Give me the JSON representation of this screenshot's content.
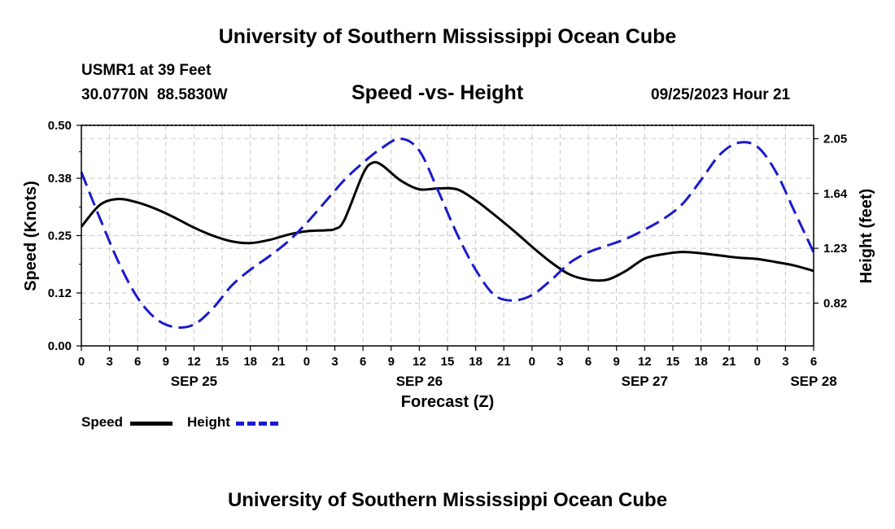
{
  "header": {
    "title": "University of Southern Mississippi Ocean Cube",
    "station": "USMR1 at 39 Feet",
    "location": "30.0770N  88.5830W",
    "chart_title": "Speed -vs- Height",
    "datetime": "09/25/2023 Hour 21"
  },
  "footer": {
    "title": "University of Southern Mississippi Ocean Cube"
  },
  "legend": {
    "speed_label": "Speed",
    "height_label": "Height"
  },
  "chart_data": {
    "type": "line",
    "title": "Speed -vs- Height",
    "xlabel": "Forecast (Z)",
    "ylabel_left": "Speed (Knots)",
    "ylabel_right": "Height (feet)",
    "x_unit": "hours from SEP 25 00Z",
    "xlim": [
      0,
      78
    ],
    "ylim_left": [
      0,
      0.5
    ],
    "ylim_right": [
      0.5,
      2.15
    ],
    "x_tick_labels": [
      "0",
      "3",
      "6",
      "9",
      "12",
      "15",
      "18",
      "21",
      "0",
      "3",
      "6",
      "9",
      "12",
      "15",
      "18",
      "21",
      "0",
      "3",
      "6",
      "9",
      "12",
      "15",
      "18",
      "21",
      "0",
      "3",
      "6"
    ],
    "date_labels": [
      {
        "x": 12,
        "label": "SEP 25"
      },
      {
        "x": 36,
        "label": "SEP 26"
      },
      {
        "x": 60,
        "label": "SEP 27"
      },
      {
        "x": 78,
        "label": "SEP 28"
      }
    ],
    "y_left_ticks": [
      0.0,
      0.12,
      0.25,
      0.38,
      0.5
    ],
    "y_left_tick_labels": [
      "0.00",
      "0.12",
      "0.25",
      "0.38",
      "0.50"
    ],
    "y_right_ticks": [
      0.82,
      1.23,
      1.64,
      2.05
    ],
    "y_right_tick_labels": [
      "0.82",
      "1.23",
      "1.64",
      "2.05"
    ],
    "grid": true,
    "series": [
      {
        "name": "Speed",
        "axis": "left",
        "color": "#000000",
        "style": "solid",
        "x": [
          0,
          2,
          4,
          6,
          8,
          10,
          12,
          14,
          16,
          18,
          20,
          22,
          24,
          26,
          27,
          28,
          30,
          31,
          32,
          34,
          36,
          38,
          40,
          42,
          44,
          46,
          48,
          50,
          52,
          54,
          56,
          58,
          60,
          62,
          64,
          66,
          68,
          70,
          72,
          74,
          76,
          78
        ],
        "values": [
          0.27,
          0.32,
          0.333,
          0.325,
          0.31,
          0.29,
          0.268,
          0.25,
          0.237,
          0.233,
          0.24,
          0.252,
          0.26,
          0.262,
          0.265,
          0.285,
          0.39,
          0.415,
          0.41,
          0.375,
          0.355,
          0.357,
          0.355,
          0.33,
          0.297,
          0.262,
          0.225,
          0.19,
          0.162,
          0.15,
          0.15,
          0.17,
          0.198,
          0.208,
          0.213,
          0.21,
          0.205,
          0.2,
          0.197,
          0.19,
          0.182,
          0.17
        ]
      },
      {
        "name": "Height",
        "axis": "right",
        "color": "#1a1acc",
        "style": "dashed",
        "x": [
          0,
          2,
          4,
          6,
          8,
          10,
          12,
          14,
          16,
          18,
          20,
          22,
          24,
          26,
          28,
          30,
          32,
          34,
          36,
          38,
          40,
          42,
          44,
          46,
          48,
          50,
          52,
          54,
          56,
          58,
          60,
          62,
          64,
          66,
          68,
          70,
          72,
          74,
          76,
          78
        ],
        "values": [
          1.8,
          1.45,
          1.12,
          0.86,
          0.7,
          0.64,
          0.66,
          0.78,
          0.95,
          1.07,
          1.17,
          1.28,
          1.42,
          1.58,
          1.74,
          1.87,
          1.98,
          2.05,
          1.96,
          1.66,
          1.34,
          1.07,
          0.88,
          0.84,
          0.88,
          0.99,
          1.12,
          1.2,
          1.25,
          1.3,
          1.37,
          1.45,
          1.56,
          1.74,
          1.93,
          2.02,
          1.99,
          1.8,
          1.5,
          1.2
        ]
      }
    ]
  }
}
